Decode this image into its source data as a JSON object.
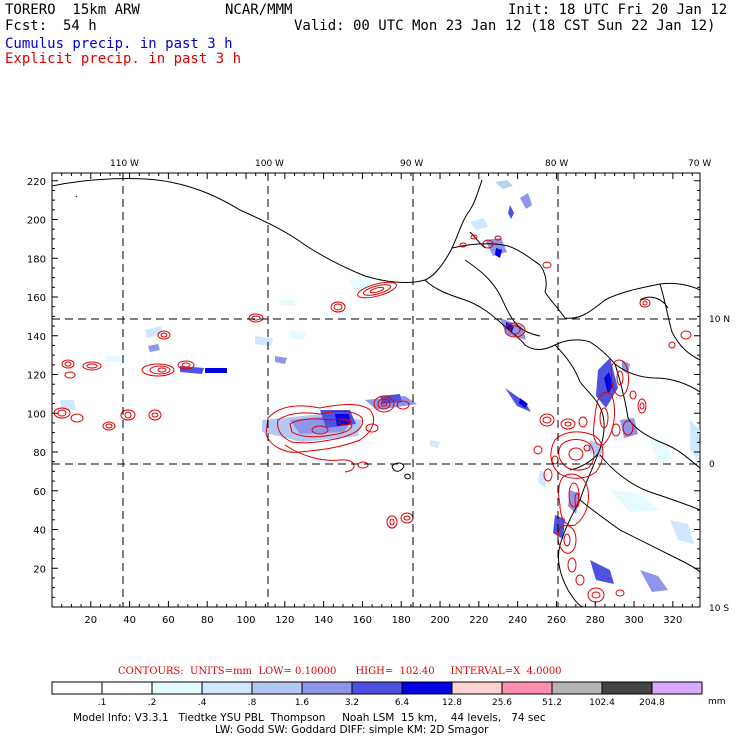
{
  "header": {
    "model": "TORERO  15km ARW",
    "org": "NCAR/MMM",
    "init": "Init: 18 UTC Fri 20 Jan 12",
    "fcst_label": "Fcst:",
    "fcst_value": "54 h",
    "valid": "Valid: 00 UTC Mon 23 Jan 12 (18 CST Sun 22 Jan 12)",
    "cumulus_label": "Cumulus precip. in past 3 h",
    "explicit_label": "Explicit precip. in past 3 h"
  },
  "colors": {
    "cumulus": "#0000cc",
    "explicit": "#e00000",
    "land": "#000000",
    "grid": "#000000"
  },
  "map": {
    "x_grid_labels": [
      "20",
      "40",
      "60",
      "80",
      "100",
      "120",
      "140",
      "160",
      "180",
      "200",
      "220",
      "240",
      "260",
      "280",
      "300",
      "320"
    ],
    "x_grid_values": [
      20,
      40,
      60,
      80,
      100,
      120,
      140,
      160,
      180,
      200,
      220,
      240,
      260,
      280,
      300,
      320
    ],
    "y_grid_labels": [
      "20",
      "40",
      "60",
      "80",
      "100",
      "120",
      "140",
      "160",
      "180",
      "200",
      "220"
    ],
    "y_grid_values": [
      20,
      40,
      60,
      80,
      100,
      120,
      140,
      160,
      180,
      200,
      220
    ],
    "lon_labels": [
      "110 W",
      "100 W",
      "90 W",
      "80 W",
      "70 W"
    ],
    "lat_labels": [
      "10 N",
      "0",
      "10 S"
    ]
  },
  "contour_info": {
    "text": "CONTOURS:  UNITS=mm  LOW= 0.10000      HIGH=  102.40     INTERVAL=X  4.0000"
  },
  "colorbar": {
    "labels": [
      ".1",
      ".2",
      ".4",
      ".8",
      "1.6",
      "3.2",
      "6.4",
      "12.8",
      "25.6",
      "51.2",
      "102.4",
      "204.8"
    ],
    "unit": "mm",
    "colors": [
      "#ffffff",
      "#ffffff",
      "#e6fbff",
      "#cfe8ff",
      "#b4c8f5",
      "#8f95ea",
      "#4f52e0",
      "#0000e6",
      "#ffd2d2",
      "#ff8fb0",
      "#b3b3b3",
      "#444444",
      "#d7a9ff"
    ]
  },
  "model_info": {
    "line1": "Model Info: V3.3.1   Tiedtke YSU PBL  Thompson     Noah LSM  15 km,    44 levels,   74 sec",
    "line2": "LW: Godd SW: Goddard DIFF: simple KM: 2D Smagor"
  }
}
